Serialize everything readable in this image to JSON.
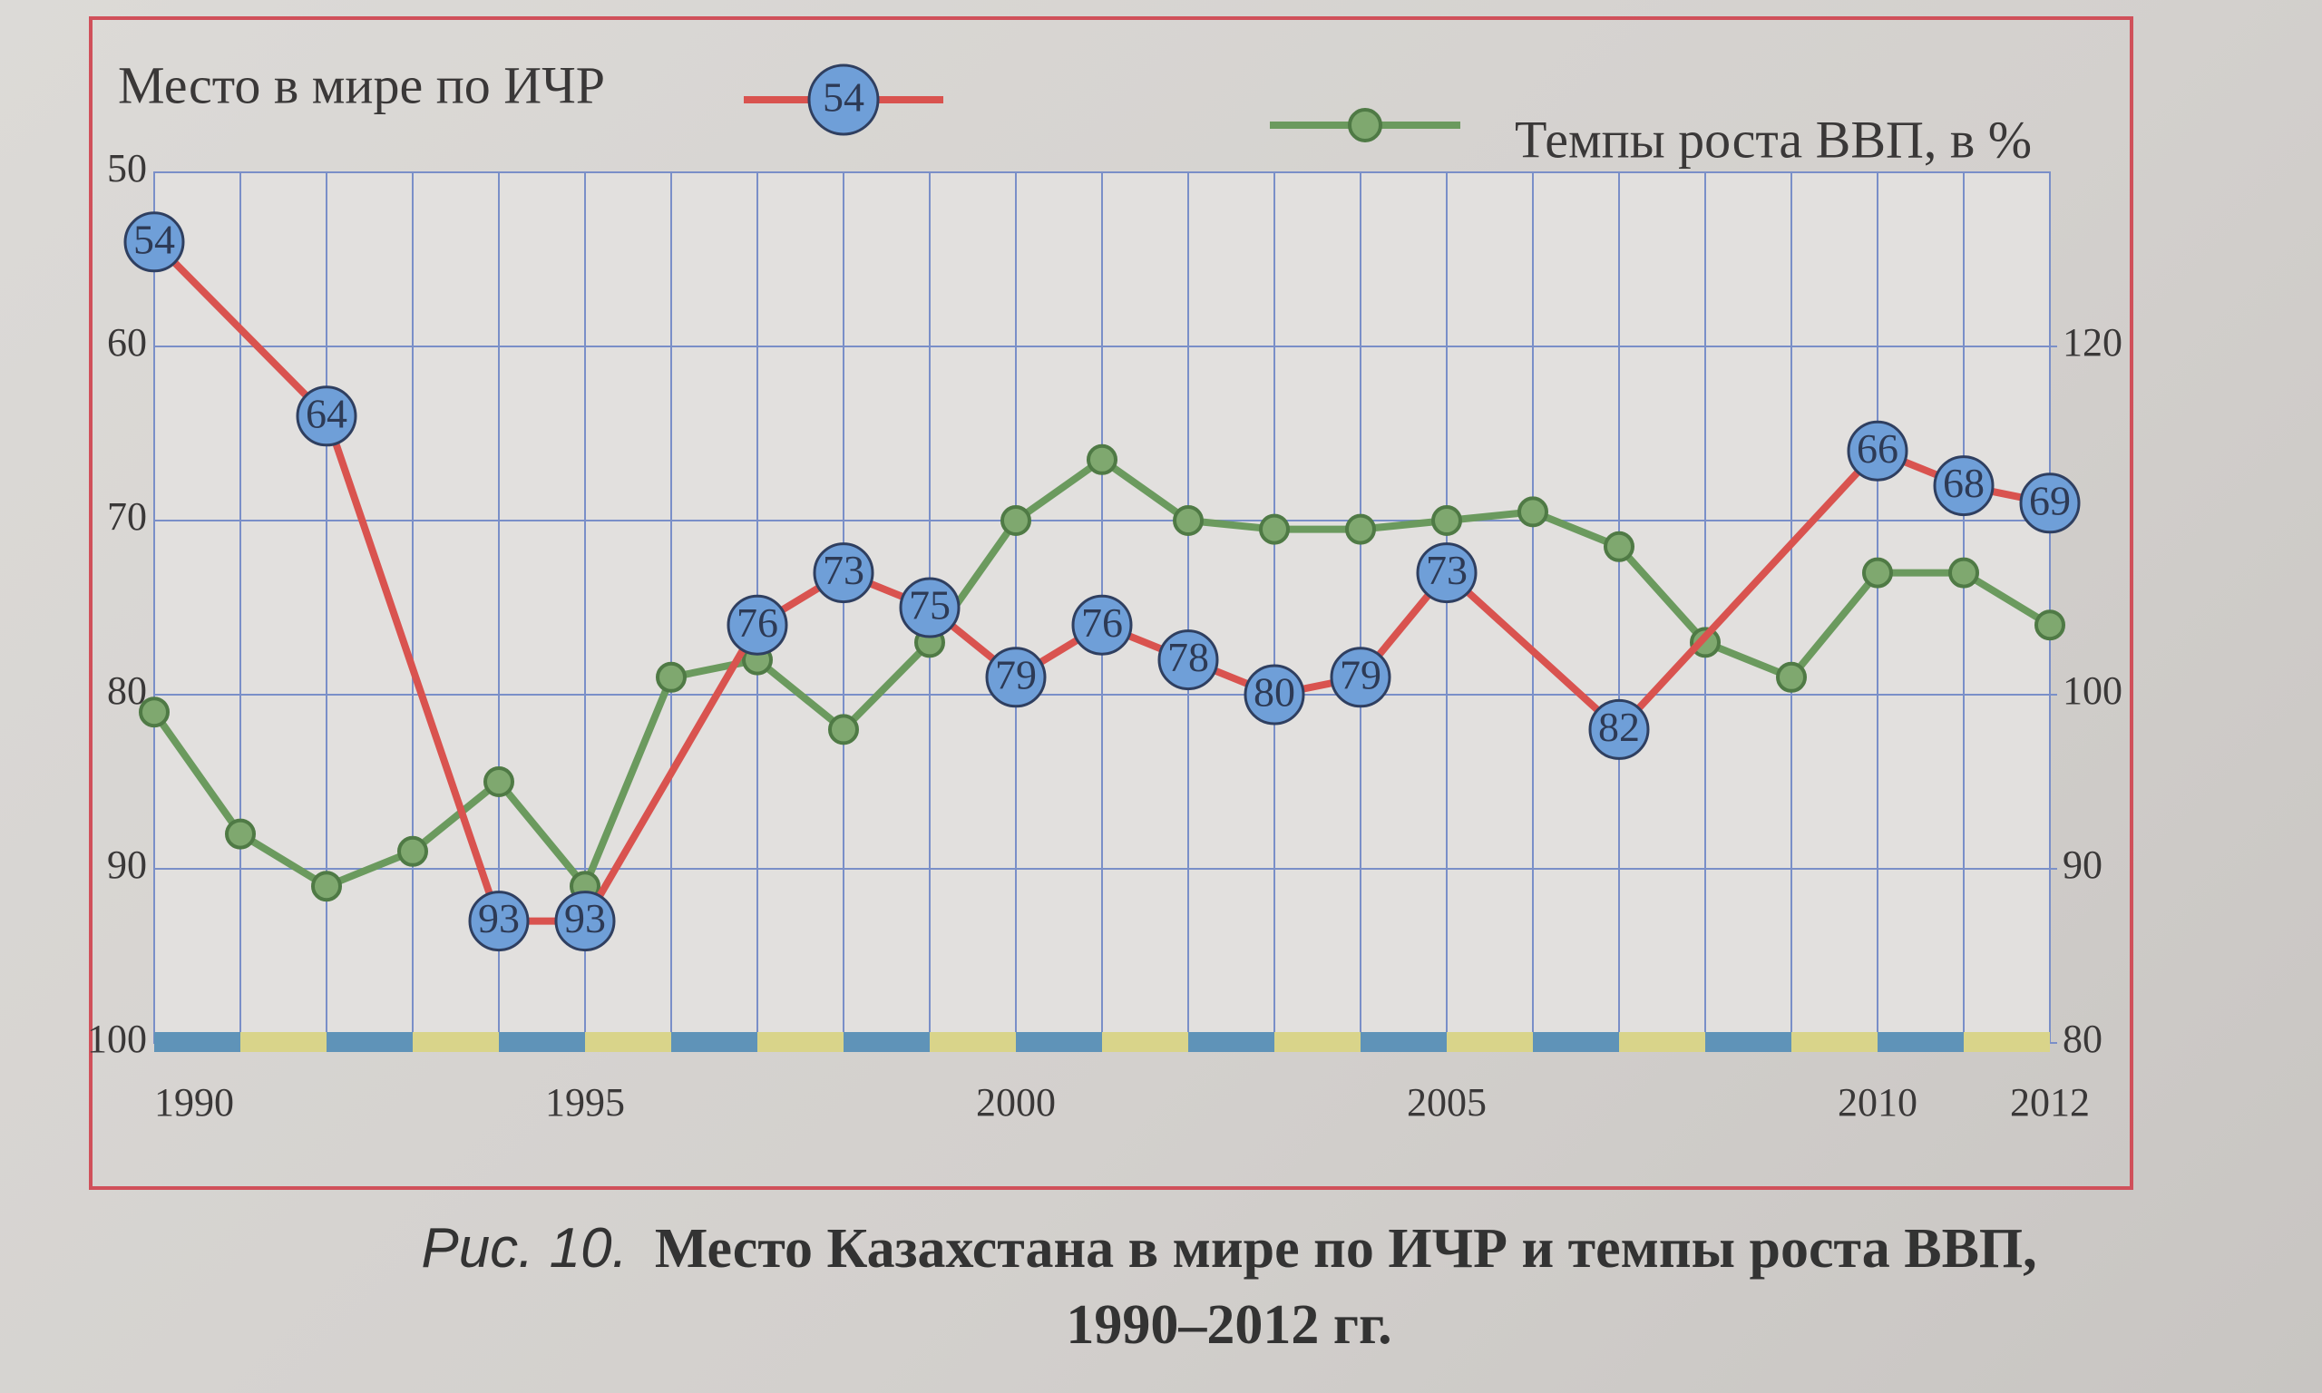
{
  "chart_data": {
    "type": "line",
    "figure_label": "Рис. 10.",
    "title": "Место Казахстана в мире по ИЧР и темпы роста ВВП, 1990–2012 гг.",
    "xlim": [
      1990,
      2012
    ],
    "xticks": [
      1990,
      1995,
      2000,
      2005,
      2010,
      2012
    ],
    "ylim": [
      100,
      50
    ],
    "yticks": [
      50,
      60,
      70,
      80,
      90,
      100
    ],
    "y2lim": [
      80,
      130
    ],
    "y2ticks": [
      80,
      90,
      100,
      120
    ],
    "grid": true,
    "series": [
      {
        "name": "Место в мире по ИЧР",
        "color": "#d9534f",
        "x": [
          1990,
          1992,
          1994,
          1995,
          1997,
          1998,
          1999,
          2000,
          2001,
          2002,
          2003,
          2004,
          2005,
          2007,
          2010,
          2011,
          2012
        ],
        "values": [
          54,
          64,
          93,
          93,
          76,
          73,
          75,
          79,
          76,
          78,
          80,
          79,
          73,
          82,
          66,
          68,
          69
        ]
      },
      {
        "name": "Темпы роста ВВП, в %",
        "color": "#6b9a5e",
        "axis": "y2",
        "x": [
          1990,
          1991,
          1992,
          1993,
          1994,
          1995,
          1996,
          1997,
          1998,
          1999,
          2000,
          2001,
          2002,
          2003,
          2004,
          2005,
          2006,
          2007,
          2008,
          2009,
          2010,
          2011,
          2012
        ],
        "values": [
          99,
          92,
          89,
          91,
          95,
          89,
          101,
          102,
          98,
          103,
          110,
          113.5,
          110,
          109.5,
          109.5,
          110,
          110.5,
          108.5,
          103,
          101,
          107,
          107,
          104
        ]
      }
    ]
  }
}
